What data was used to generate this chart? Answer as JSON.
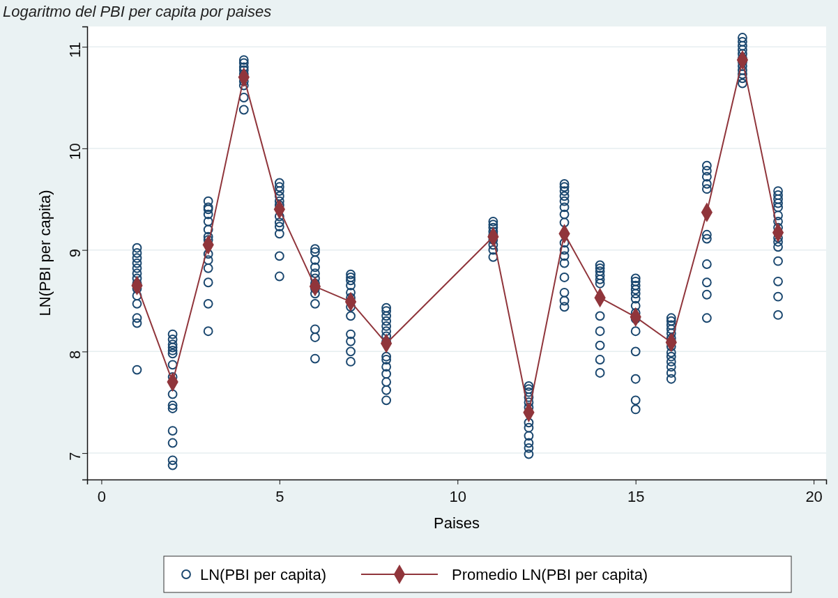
{
  "chart_data": {
    "type": "scatter",
    "title": "Logaritmo del PBI per capita por paises",
    "xlabel": "Paises",
    "ylabel": "LN(PBI per capita)",
    "xlim": [
      -0.4,
      20.35
    ],
    "ylim": [
      6.74,
      11.2
    ],
    "xticks": [
      0,
      5,
      10,
      15,
      20
    ],
    "yticks": [
      7,
      8,
      9,
      10,
      11
    ],
    "grid": "y",
    "legend": "bottom",
    "series": [
      {
        "name": "LN(PBI per capita)",
        "marker": "circle",
        "color": "#1a476f",
        "x": [
          1,
          1,
          1,
          1,
          1,
          1,
          1,
          1,
          1,
          1,
          1,
          1,
          1,
          1,
          2,
          2,
          2,
          2,
          2,
          2,
          2,
          2,
          2,
          2,
          2,
          2,
          2,
          2,
          2,
          3,
          3,
          3,
          3,
          3,
          3,
          3,
          3,
          3,
          3,
          3,
          3,
          3,
          3,
          4,
          4,
          4,
          4,
          4,
          4,
          4,
          4,
          4,
          5,
          5,
          5,
          5,
          5,
          5,
          5,
          5,
          5,
          5,
          5,
          5,
          6,
          6,
          6,
          6,
          6,
          6,
          6,
          6,
          6,
          6,
          6,
          6,
          6,
          7,
          7,
          7,
          7,
          7,
          7,
          7,
          7,
          7,
          7,
          7,
          7,
          8,
          8,
          8,
          8,
          8,
          8,
          8,
          8,
          8,
          8,
          8,
          8,
          8,
          8,
          8,
          11,
          11,
          11,
          11,
          11,
          11,
          11,
          11,
          11,
          12,
          12,
          12,
          12,
          12,
          12,
          12,
          12,
          12,
          12,
          12,
          12,
          13,
          13,
          13,
          13,
          13,
          13,
          13,
          13,
          13,
          13,
          13,
          13,
          13,
          13,
          13,
          13,
          14,
          14,
          14,
          14,
          14,
          14,
          14,
          14,
          14,
          14,
          14,
          15,
          15,
          15,
          15,
          15,
          15,
          15,
          15,
          15,
          15,
          15,
          15,
          15,
          15,
          16,
          16,
          16,
          16,
          16,
          16,
          16,
          16,
          16,
          16,
          16,
          16,
          16,
          16,
          17,
          17,
          17,
          17,
          17,
          17,
          17,
          17,
          17,
          17,
          17,
          18,
          18,
          18,
          18,
          18,
          18,
          18,
          18,
          18,
          18,
          18,
          18,
          19,
          19,
          19,
          19,
          19,
          19,
          19,
          19,
          19,
          19,
          19,
          19,
          19,
          19,
          19
        ],
        "values": [
          9.02,
          8.97,
          8.92,
          8.87,
          8.82,
          8.77,
          8.72,
          8.67,
          8.62,
          8.55,
          8.47,
          8.33,
          8.28,
          7.82,
          8.17,
          8.12,
          8.07,
          8.04,
          8.01,
          7.98,
          7.87,
          7.75,
          7.58,
          7.47,
          7.44,
          7.22,
          7.1,
          6.93,
          6.88,
          9.48,
          9.42,
          9.4,
          9.35,
          9.28,
          9.2,
          9.13,
          9.1,
          8.96,
          8.9,
          8.82,
          8.68,
          8.47,
          8.2,
          10.87,
          10.84,
          10.8,
          10.77,
          10.73,
          10.66,
          10.62,
          10.5,
          10.38,
          9.66,
          9.62,
          9.58,
          9.53,
          9.48,
          9.44,
          9.33,
          9.27,
          9.23,
          9.16,
          8.94,
          8.74,
          9.01,
          8.98,
          8.9,
          8.83,
          8.77,
          8.72,
          8.67,
          8.62,
          8.57,
          8.47,
          8.22,
          8.14,
          7.93,
          8.76,
          8.73,
          8.7,
          8.65,
          8.58,
          8.53,
          8.44,
          8.35,
          8.17,
          8.1,
          8.0,
          7.9,
          8.43,
          8.4,
          8.35,
          8.3,
          8.25,
          8.2,
          8.15,
          8.1,
          7.95,
          7.92,
          7.85,
          7.78,
          7.7,
          7.62,
          7.52,
          9.28,
          9.25,
          9.22,
          9.18,
          9.15,
          9.1,
          9.05,
          9.0,
          8.93,
          7.66,
          7.63,
          7.6,
          7.55,
          7.5,
          7.45,
          7.3,
          7.25,
          7.17,
          7.1,
          7.05,
          6.99,
          9.65,
          9.62,
          9.58,
          9.53,
          9.48,
          9.42,
          9.35,
          9.27,
          9.07,
          9.0,
          8.94,
          8.87,
          8.73,
          8.58,
          8.5,
          8.44,
          8.85,
          8.82,
          8.79,
          8.75,
          8.71,
          8.67,
          8.35,
          8.2,
          8.06,
          7.92,
          7.79,
          8.72,
          8.69,
          8.65,
          8.61,
          8.57,
          8.52,
          8.45,
          8.38,
          8.32,
          8.2,
          8.0,
          7.73,
          7.52,
          7.43,
          8.33,
          8.3,
          8.26,
          8.22,
          8.18,
          8.13,
          8.1,
          8.05,
          7.99,
          7.95,
          7.9,
          7.85,
          7.79,
          7.73,
          9.83,
          9.78,
          9.72,
          9.65,
          9.6,
          9.15,
          9.11,
          8.86,
          8.68,
          8.56,
          8.33,
          11.09,
          11.05,
          11.01,
          10.97,
          10.93,
          10.89,
          10.85,
          10.81,
          10.77,
          10.73,
          10.69,
          10.64,
          9.58,
          9.54,
          9.5,
          9.46,
          9.42,
          9.34,
          9.28,
          9.22,
          9.12,
          9.08,
          9.03,
          8.89,
          8.69,
          8.54,
          8.36
        ]
      },
      {
        "name": "Promedio LN(PBI per capita)",
        "type": "line",
        "marker": "diamond",
        "line_style": "solid",
        "color": "#90353b",
        "x": [
          1,
          2,
          3,
          4,
          5,
          6,
          7,
          8,
          11,
          12,
          13,
          14,
          15,
          16,
          17,
          18,
          19
        ],
        "values": [
          8.65,
          7.7,
          9.05,
          10.7,
          9.4,
          8.64,
          8.49,
          8.08,
          9.13,
          7.4,
          9.16,
          8.53,
          8.34,
          8.09,
          9.37,
          10.87,
          9.17
        ]
      }
    ]
  }
}
